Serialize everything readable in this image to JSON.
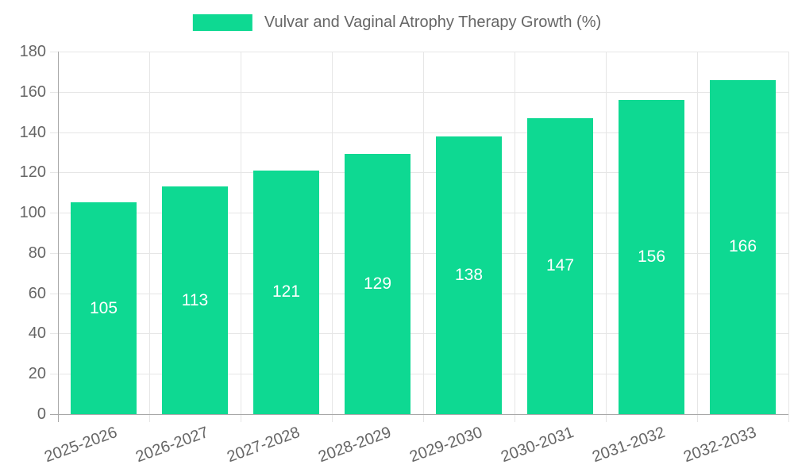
{
  "legend": {
    "label": "Vulvar and Vaginal Atrophy Therapy Growth (%)"
  },
  "chart_data": {
    "type": "bar",
    "title": "Vulvar and Vaginal Atrophy Therapy Growth (%)",
    "categories": [
      "2025-2026",
      "2026-2027",
      "2027-2028",
      "2028-2029",
      "2029-2030",
      "2030-2031",
      "2031-2032",
      "2032-2033"
    ],
    "values": [
      105,
      113,
      121,
      129,
      138,
      147,
      156,
      166
    ],
    "xlabel": "",
    "ylabel": "",
    "ylim": [
      0,
      180
    ],
    "ytick_step": 20,
    "grid": true,
    "legend_position": "top",
    "colors": {
      "bar": "#0ED992",
      "grid": "#E6E6E6",
      "axis": "#A8A8A8",
      "tick_text": "#666666",
      "bar_label_text": "#FFFFFF",
      "background": "#FFFFFF"
    }
  }
}
